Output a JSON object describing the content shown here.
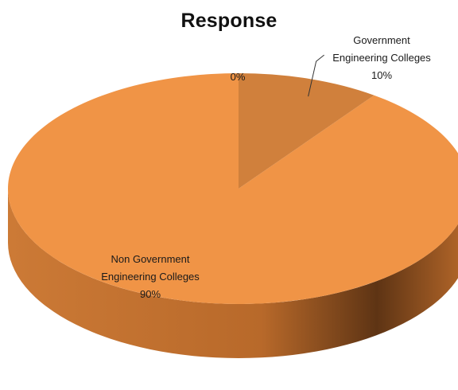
{
  "chart_data": {
    "type": "pie",
    "title": "Response",
    "style": "3d",
    "slices": [
      {
        "label_lines": [
          "Government",
          "Engineering Colleges"
        ],
        "value": 10,
        "value_label": "10%",
        "color": "#D0803C"
      },
      {
        "label_lines": [
          "Non Government",
          "Engineering Colleges"
        ],
        "value": 90,
        "value_label": "90%",
        "color": "#F09446"
      }
    ],
    "extra_labels": [
      {
        "text": "0%"
      }
    ],
    "colors": {
      "side_dark": "#5E3414",
      "side_mid": "#B8692A",
      "side_light": "#CC7A36",
      "leader_line": "#333333"
    }
  }
}
